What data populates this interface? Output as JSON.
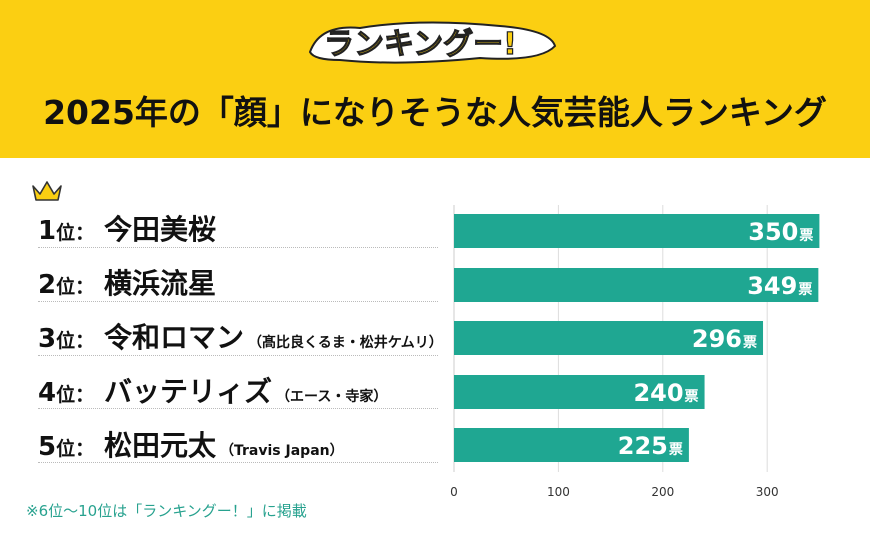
{
  "header": {
    "logo_text": "ランキングー!",
    "title": "2025年の「顔」になりそうな人気芸能人ランキング"
  },
  "colors": {
    "header_bg": "#fbcf12",
    "bar": "#1fa792",
    "footnote": "#28a28f"
  },
  "rows": [
    {
      "rank": "1",
      "rank_suffix": "位：",
      "name": "今田美桜",
      "sub": "",
      "value_label": "350",
      "unit": "票"
    },
    {
      "rank": "2",
      "rank_suffix": "位：",
      "name": "横浜流星",
      "sub": "",
      "value_label": "349",
      "unit": "票"
    },
    {
      "rank": "3",
      "rank_suffix": "位：",
      "name": "令和ロマン",
      "sub": "（髙比良くるま・松井ケムリ）",
      "value_label": "296",
      "unit": "票"
    },
    {
      "rank": "4",
      "rank_suffix": "位：",
      "name": "バッテリィズ",
      "sub": "（エース・寺家）",
      "value_label": "240",
      "unit": "票"
    },
    {
      "rank": "5",
      "rank_suffix": "位：",
      "name": "松田元太",
      "sub": "（Travis Japan）",
      "value_label": "225",
      "unit": "票"
    }
  ],
  "chart_data": {
    "type": "bar",
    "orientation": "horizontal",
    "categories": [
      "今田美桜",
      "横浜流星",
      "令和ロマン",
      "バッテリィズ",
      "松田元太"
    ],
    "values": [
      350,
      349,
      296,
      240,
      225
    ],
    "xlim": [
      0,
      350
    ],
    "xticks": [
      "0",
      "100",
      "200",
      "300"
    ],
    "grid": true
  },
  "footnote": "※6位〜10位は「ランキングー！」に掲載"
}
